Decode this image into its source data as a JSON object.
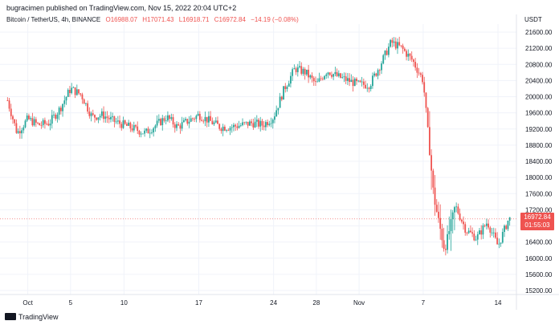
{
  "header": {
    "publisher": "bugracimen published on TradingView.com, Nov 15, 2022 20:04 UTC+2"
  },
  "legend": {
    "symbol": "Bitcoin / TetherUS, 4h, BINANCE",
    "open": "O16988.07",
    "high": "H17071.43",
    "low": "L16918.71",
    "close": "C16972.84",
    "change": "−14.19 (−0.08%)"
  },
  "price_axis": {
    "currency": "USDT",
    "last_price": "16972.84",
    "countdown": "01:55:03"
  },
  "footer": {
    "logo_text": "TradingView"
  },
  "colors": {
    "up": "#26a69a",
    "down": "#ef5350",
    "grid": "#f0f3fa",
    "text": "#131722"
  },
  "chart_data": {
    "type": "candlestick",
    "interval": "4h",
    "ylim": [
      15200,
      21800
    ],
    "y_ticks": [
      15200,
      15600,
      16000,
      16400,
      16800,
      17200,
      17600,
      18000,
      18400,
      18800,
      19200,
      19600,
      20000,
      20400,
      20800,
      21200,
      21600
    ],
    "x_ticks": [
      {
        "label": "Oct",
        "day": 1
      },
      {
        "label": "5",
        "day": 5
      },
      {
        "label": "10",
        "day": 10
      },
      {
        "label": "17",
        "day": 17
      },
      {
        "label": "24",
        "day": 24
      },
      {
        "label": "28",
        "day": 28
      },
      {
        "label": "Nov",
        "day": 32
      },
      {
        "label": "7",
        "day": 38
      },
      {
        "label": "14",
        "day": 45
      }
    ],
    "close_path": [
      [
        -1,
        20000
      ],
      [
        0,
        19100
      ],
      [
        1,
        19450
      ],
      [
        2,
        19300
      ],
      [
        3,
        19350
      ],
      [
        4,
        19700
      ],
      [
        5,
        20200
      ],
      [
        6,
        20050
      ],
      [
        7,
        19500
      ],
      [
        8,
        19550
      ],
      [
        9,
        19400
      ],
      [
        10,
        19300
      ],
      [
        11,
        19200
      ],
      [
        12,
        19100
      ],
      [
        13,
        19300
      ],
      [
        14,
        19500
      ],
      [
        15,
        19250
      ],
      [
        16,
        19400
      ],
      [
        17,
        19550
      ],
      [
        18,
        19400
      ],
      [
        19,
        19250
      ],
      [
        20,
        19250
      ],
      [
        21,
        19300
      ],
      [
        22,
        19350
      ],
      [
        23,
        19300
      ],
      [
        24,
        19500
      ],
      [
        25,
        20200
      ],
      [
        26,
        20700
      ],
      [
        27,
        20600
      ],
      [
        28,
        20300
      ],
      [
        29,
        20650
      ],
      [
        30,
        20500
      ],
      [
        31,
        20400
      ],
      [
        32,
        20300
      ],
      [
        33,
        20300
      ],
      [
        34,
        20800
      ],
      [
        35,
        21350
      ],
      [
        36,
        21200
      ],
      [
        37,
        20900
      ],
      [
        38,
        20400
      ],
      [
        39,
        17500
      ],
      [
        40,
        16200
      ],
      [
        41,
        17300
      ],
      [
        42,
        16700
      ],
      [
        43,
        16500
      ],
      [
        44,
        16900
      ],
      [
        45,
        16300
      ],
      [
        46,
        16972.84
      ]
    ]
  }
}
